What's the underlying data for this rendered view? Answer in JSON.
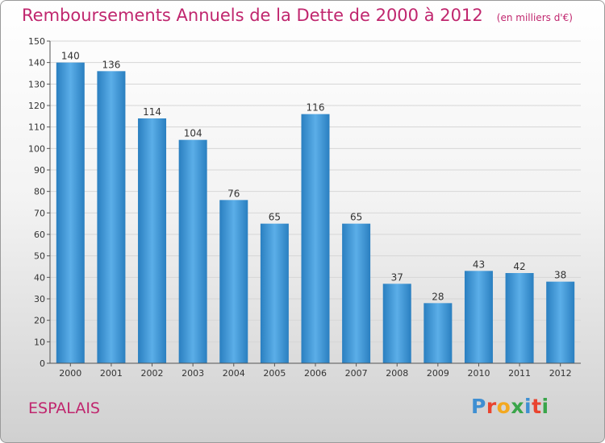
{
  "title": "Remboursements Annuels de la Dette de 2000 à 2012",
  "unit_note": "(en milliers d'€)",
  "commune": "ESPALAIS",
  "logo": {
    "letters": [
      "P",
      "r",
      "o",
      "x",
      "i",
      "t",
      "i"
    ],
    "colors": [
      "#3f8fd2",
      "#e9442f",
      "#f3a81f",
      "#3aa54a",
      "#3f8fd2",
      "#e9442f",
      "#3aa54a"
    ]
  },
  "chart_data": {
    "type": "bar",
    "title": "Remboursements Annuels de la Dette de 2000 à 2012",
    "xlabel": "",
    "ylabel": "",
    "categories": [
      "2000",
      "2001",
      "2002",
      "2003",
      "2004",
      "2005",
      "2006",
      "2007",
      "2008",
      "2009",
      "2010",
      "2011",
      "2012"
    ],
    "values": [
      140,
      136,
      114,
      104,
      76,
      65,
      116,
      65,
      37,
      28,
      43,
      42,
      38
    ],
    "ylim": [
      0,
      150
    ],
    "yticks": [
      0,
      10,
      20,
      30,
      40,
      50,
      60,
      70,
      80,
      90,
      100,
      110,
      120,
      130,
      140,
      150
    ],
    "grid": true,
    "bar_color_light": "#5baee8",
    "bar_color_dark": "#2a7fc0"
  }
}
